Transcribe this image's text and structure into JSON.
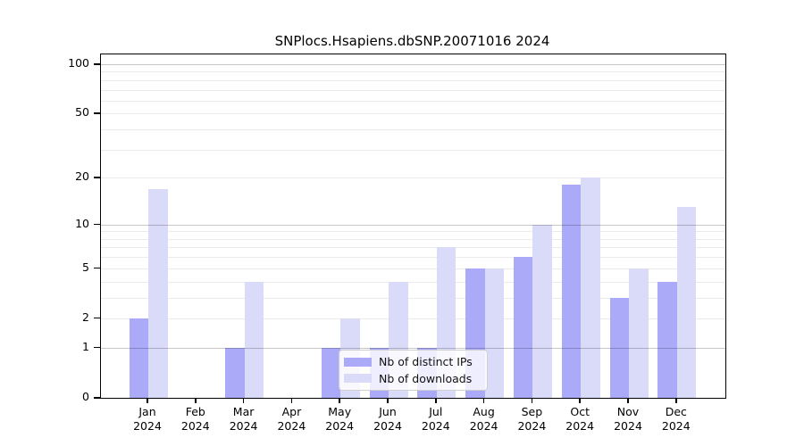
{
  "chart_data": {
    "type": "bar",
    "title": "SNPlocs.Hsapiens.dbSNP.20071016 2024",
    "yscale": "log1p",
    "ylim": [
      0,
      100
    ],
    "yticks": [
      0,
      1,
      2,
      5,
      10,
      20,
      50,
      100
    ],
    "grid_major": [
      1,
      10,
      100
    ],
    "grid_minor": [
      2,
      3,
      4,
      5,
      6,
      7,
      8,
      9,
      20,
      30,
      40,
      50,
      60,
      70,
      80,
      90
    ],
    "grid": true,
    "categories": [
      "Jan",
      "Feb",
      "Mar",
      "Apr",
      "May",
      "Jun",
      "Jul",
      "Aug",
      "Sep",
      "Oct",
      "Nov",
      "Dec"
    ],
    "category_sublabel": "2024",
    "series": [
      {
        "name": "Nb of distinct IPs",
        "color": "#aaaaf8",
        "values": [
          2,
          0,
          1,
          0,
          1,
          1,
          1,
          5,
          6,
          18,
          3,
          4
        ]
      },
      {
        "name": "Nb of downloads",
        "color": "#dadaf9",
        "values": [
          17,
          0,
          4,
          0,
          2,
          4,
          7,
          5,
          10,
          20,
          5,
          13
        ]
      }
    ],
    "legend_position": "lower center"
  },
  "colors": {
    "background": "#ffffff",
    "axis": "#000000",
    "grid_major": "rgba(0,0,0,0.22)",
    "grid_minor": "rgba(60,60,60,0.10)",
    "legend_border": "#cfcfcf",
    "legend_background": "rgba(255,255,255,0.8)"
  }
}
